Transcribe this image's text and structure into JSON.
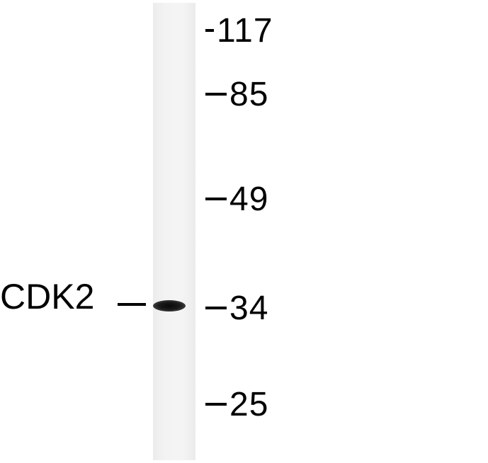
{
  "protein": {
    "label": "CDK2"
  },
  "markers": [
    {
      "label": "117",
      "kda": 117
    },
    {
      "label": "85",
      "kda": 85
    },
    {
      "label": "49",
      "kda": 49
    },
    {
      "label": "34",
      "kda": 34
    },
    {
      "label": "25",
      "kda": 25
    }
  ],
  "band": {
    "near_marker_kda": 34,
    "intensity": "strong"
  },
  "colors": {
    "background": "#ffffff",
    "lane": "#f2f2f2",
    "band": "#111111",
    "text": "#000000"
  }
}
